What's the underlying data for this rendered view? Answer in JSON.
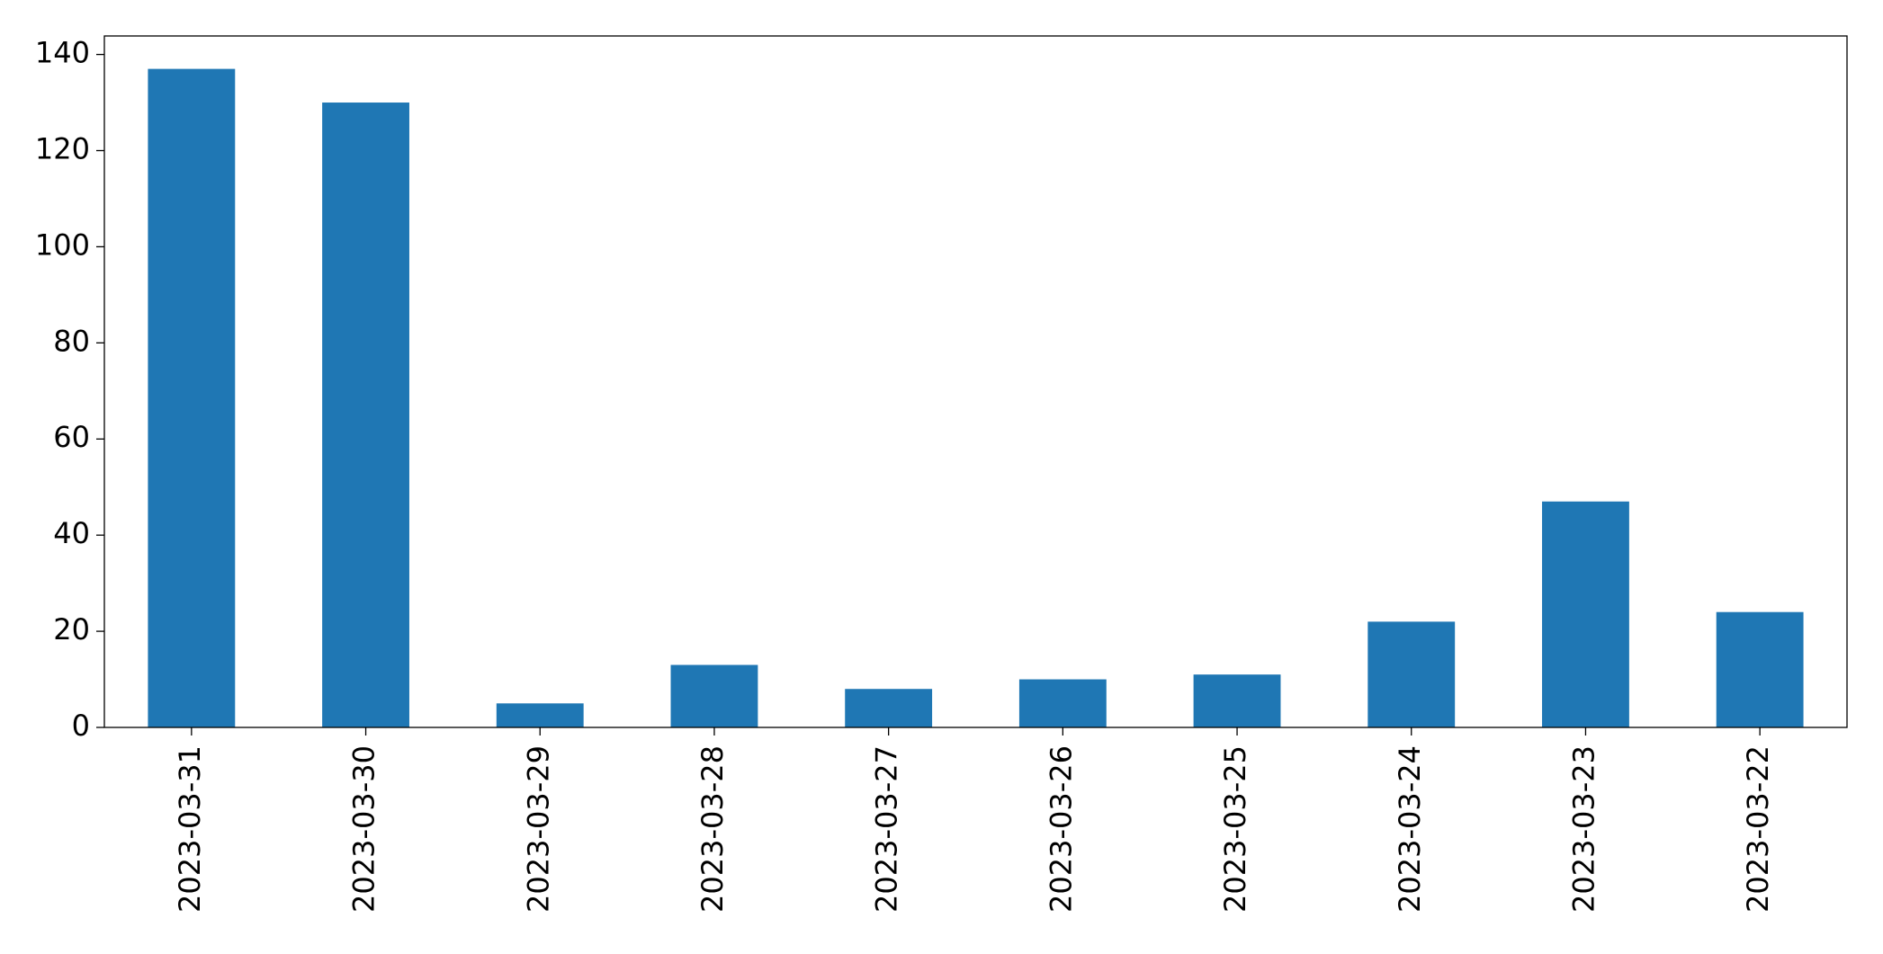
{
  "chart_data": {
    "type": "bar",
    "categories": [
      "2023-03-31",
      "2023-03-30",
      "2023-03-29",
      "2023-03-28",
      "2023-03-27",
      "2023-03-26",
      "2023-03-25",
      "2023-03-24",
      "2023-03-23",
      "2023-03-22"
    ],
    "values": [
      137,
      130,
      5,
      13,
      8,
      10,
      11,
      22,
      47,
      24
    ],
    "color": "#1f77b4",
    "ylim": [
      0,
      143.85
    ],
    "yticks": [
      0,
      20,
      40,
      60,
      80,
      100,
      120,
      140
    ],
    "grid": false
  }
}
